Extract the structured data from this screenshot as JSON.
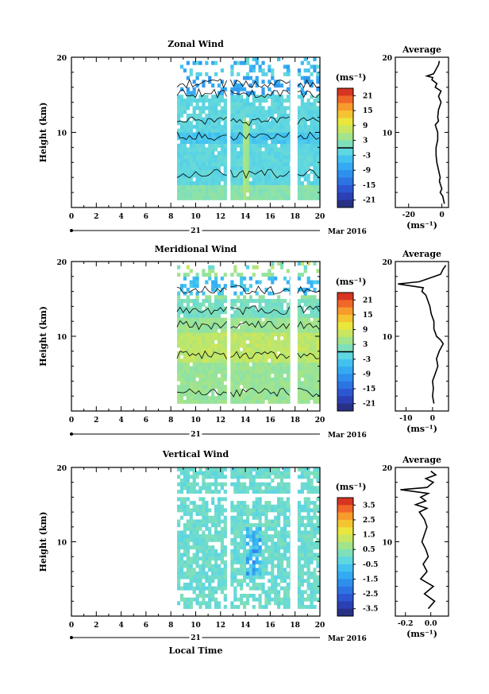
{
  "chart_data": [
    {
      "type": "heatmap",
      "title": "Zonal Wind",
      "ylabel": "Height (km)",
      "xlim": [
        0,
        20
      ],
      "ylim": [
        0,
        20
      ],
      "xticks": [
        "0",
        "2",
        "4",
        "6",
        "8",
        "10",
        "12",
        "14",
        "16",
        "18",
        "20"
      ],
      "yticks": [
        "20",
        "10"
      ],
      "date_label": "21",
      "month_label": "Mar 2016",
      "colorbar": {
        "unit": "(ms⁻¹)",
        "ticks": [
          "21",
          "15",
          "9",
          "3",
          "-3",
          "-9",
          "-15",
          "-21"
        ],
        "range": [
          -24,
          24
        ],
        "zero_line": 0
      },
      "data_columns": [
        [
          8.5,
          12.5
        ],
        [
          12.8,
          17.6
        ],
        [
          18.2,
          20
        ]
      ],
      "average": {
        "title": "Average",
        "xlabel": "(ms⁻¹)",
        "xticks": [
          "-20",
          "0"
        ],
        "xlim": [
          -28,
          4
        ],
        "yticks": [
          "20",
          "10"
        ],
        "profile": [
          [
            0.5,
            1.5
          ],
          [
            1.5,
            0.5
          ],
          [
            2,
            -1
          ],
          [
            2.5,
            0
          ],
          [
            3,
            -0.8
          ],
          [
            3.5,
            -1.5
          ],
          [
            4,
            -1
          ],
          [
            5,
            -2
          ],
          [
            6,
            -3
          ],
          [
            7,
            -3.5
          ],
          [
            8,
            -3.5
          ],
          [
            9,
            -2.5
          ],
          [
            10,
            -2.5
          ],
          [
            11,
            -4
          ],
          [
            11.5,
            -2
          ],
          [
            12,
            -2.5
          ],
          [
            13,
            -2
          ],
          [
            14,
            -0.5
          ],
          [
            14.8,
            -2
          ],
          [
            15.5,
            -0.5
          ],
          [
            16,
            -4
          ],
          [
            16.5,
            -3
          ],
          [
            17,
            -6
          ],
          [
            17.3,
            -5.5
          ],
          [
            17.5,
            -9
          ],
          [
            17.8,
            -5
          ],
          [
            18.2,
            -4
          ],
          [
            18.6,
            -3
          ],
          [
            19,
            -2
          ],
          [
            19.5,
            -1.5
          ]
        ]
      }
    },
    {
      "type": "heatmap",
      "title": "Meridional Wind",
      "ylabel": "Height (km)",
      "xlim": [
        0,
        20
      ],
      "ylim": [
        0,
        20
      ],
      "xticks": [
        "0",
        "2",
        "4",
        "6",
        "8",
        "10",
        "12",
        "14",
        "16",
        "18",
        "20"
      ],
      "yticks": [
        "20",
        "10"
      ],
      "date_label": "21",
      "month_label": "Mar 2016",
      "colorbar": {
        "unit": "(ms⁻¹)",
        "ticks": [
          "21",
          "15",
          "9",
          "3",
          "-3",
          "-9",
          "-15",
          "-21"
        ],
        "range": [
          -24,
          24
        ],
        "zero_line": 0
      },
      "data_columns": [
        [
          8.5,
          12.5
        ],
        [
          12.8,
          17.6
        ],
        [
          18.2,
          20
        ]
      ],
      "average": {
        "title": "Average",
        "xlabel": "(ms⁻¹)",
        "xticks": [
          "-10",
          "0"
        ],
        "xlim": [
          -14,
          6
        ],
        "yticks": [
          "20",
          "10"
        ],
        "profile": [
          [
            1,
            0.5
          ],
          [
            2,
            0
          ],
          [
            3,
            0.3
          ],
          [
            4,
            0
          ],
          [
            5,
            1
          ],
          [
            6,
            2
          ],
          [
            7,
            1.5
          ],
          [
            8,
            2.5
          ],
          [
            9,
            4
          ],
          [
            9.5,
            3
          ],
          [
            10,
            1.5
          ],
          [
            11,
            0.5
          ],
          [
            12,
            0.5
          ],
          [
            13,
            -0.5
          ],
          [
            14,
            -1
          ],
          [
            15,
            -2
          ],
          [
            15.5,
            -2.5
          ],
          [
            16,
            -4
          ],
          [
            16.5,
            -3.5
          ],
          [
            17,
            -13
          ],
          [
            17.3,
            -5
          ],
          [
            17.8,
            -1
          ],
          [
            18.3,
            3
          ],
          [
            19,
            4
          ],
          [
            19.5,
            5
          ]
        ]
      }
    },
    {
      "type": "heatmap",
      "title": "Vertical Wind",
      "ylabel": "Height (km)",
      "xlabel": "Local Time",
      "xlim": [
        0,
        20
      ],
      "ylim": [
        0,
        20
      ],
      "xticks": [
        "0",
        "2",
        "4",
        "6",
        "8",
        "10",
        "12",
        "14",
        "16",
        "18",
        "20"
      ],
      "yticks": [
        "20",
        "10"
      ],
      "date_label": "21",
      "month_label": "Mar 2016",
      "colorbar": {
        "unit": "(ms⁻¹)",
        "ticks": [
          "3.5",
          "2.5",
          "1.5",
          "0.5",
          "-0.5",
          "-1.5",
          "-2.5",
          "-3.5"
        ],
        "range": [
          -4,
          4
        ]
      },
      "data_columns": [
        [
          8.5,
          12.5
        ],
        [
          12.8,
          17.6
        ],
        [
          18.2,
          20
        ]
      ],
      "average": {
        "title": "Average",
        "xlabel": "(ms⁻¹)",
        "xticks": [
          "-0.2",
          "0.0"
        ],
        "xlim": [
          -0.28,
          0.14
        ],
        "yticks": [
          "20",
          "10"
        ],
        "profile": [
          [
            1,
            -0.02
          ],
          [
            2,
            0.03
          ],
          [
            3,
            -0.05
          ],
          [
            4,
            0.02
          ],
          [
            5,
            -0.08
          ],
          [
            6,
            -0.03
          ],
          [
            7,
            -0.06
          ],
          [
            8,
            -0.02
          ],
          [
            9,
            -0.04
          ],
          [
            10,
            -0.07
          ],
          [
            11,
            -0.05
          ],
          [
            12,
            -0.03
          ],
          [
            13,
            -0.05
          ],
          [
            14,
            -0.09
          ],
          [
            14.5,
            -0.03
          ],
          [
            15,
            -0.12
          ],
          [
            15.5,
            -0.04
          ],
          [
            16,
            -0.08
          ],
          [
            16.5,
            -0.02
          ],
          [
            17,
            -0.24
          ],
          [
            17.3,
            -0.03
          ],
          [
            18,
            0.02
          ],
          [
            18.5,
            -0.04
          ],
          [
            19,
            0.04
          ],
          [
            19.5,
            0.0
          ]
        ]
      }
    }
  ]
}
